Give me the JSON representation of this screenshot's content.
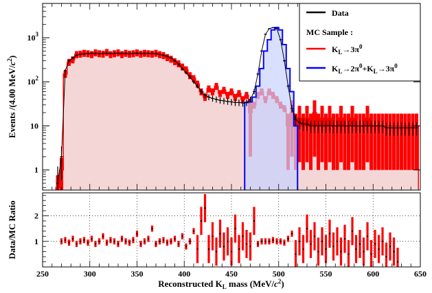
{
  "chart_data": [
    {
      "type": "line",
      "xlabel": "Reconstructed K_L mass (MeV/c²)",
      "ylabel": "Events /(4.00 MeV/c²)",
      "xlim": [
        250,
        650
      ],
      "ylim": [
        0.35,
        6000
      ],
      "yscale": "log",
      "y_ticks": [
        "1",
        "10",
        "10²",
        "10³"
      ],
      "x_ticks": [
        "250",
        "300",
        "350",
        "400",
        "450",
        "500",
        "550",
        "600",
        "650"
      ],
      "legend": {
        "placement": "top-right",
        "title": "MC Sample :",
        "entries": [
          "Data",
          "K_L→3π⁰",
          "K_L→2π⁰+K_L→3π⁰"
        ]
      },
      "colors": {
        "data": "#000000",
        "mc_3pi0": "#ff0000",
        "mc_combined": "#0000ff"
      },
      "series": [
        {
          "name": "Data",
          "x": [
            266,
            270,
            274,
            278,
            282,
            286,
            290,
            294,
            298,
            302,
            306,
            310,
            314,
            318,
            322,
            326,
            330,
            334,
            338,
            342,
            346,
            350,
            354,
            358,
            362,
            366,
            370,
            374,
            378,
            382,
            386,
            390,
            394,
            398,
            402,
            406,
            410,
            414,
            418,
            422,
            426,
            430,
            434,
            438,
            442,
            446,
            450,
            454,
            458,
            462,
            466,
            470,
            474,
            478,
            482,
            486,
            490,
            494,
            498,
            502,
            506,
            510,
            514,
            518,
            522,
            526,
            530,
            534,
            538,
            542,
            546,
            550,
            554,
            558,
            562,
            566,
            570,
            574,
            578,
            582,
            586,
            590,
            594,
            598,
            602,
            606,
            610,
            614,
            618,
            622,
            626,
            630,
            634,
            638,
            642,
            646
          ],
          "values": [
            0.5,
            2.0,
            180,
            300,
            350,
            400,
            420,
            430,
            440,
            445,
            440,
            435,
            440,
            445,
            440,
            440,
            445,
            440,
            440,
            435,
            440,
            445,
            440,
            440,
            445,
            440,
            435,
            420,
            400,
            380,
            350,
            300,
            250,
            200,
            160,
            130,
            100,
            80,
            60,
            50,
            45,
            42,
            40,
            38,
            37,
            36,
            35,
            34,
            34,
            33,
            34,
            40,
            60,
            150,
            500,
            1200,
            1600,
            1700,
            1600,
            900,
            300,
            80,
            25,
            14,
            12,
            11,
            11,
            10,
            10,
            10,
            10,
            10,
            10,
            10,
            10,
            10,
            10,
            10,
            10,
            10,
            10,
            10,
            10,
            10,
            10,
            10,
            10,
            9,
            9,
            9,
            9,
            9,
            9,
            9,
            9,
            9
          ]
        },
        {
          "name": "K_L→3π⁰",
          "x": [
            266,
            270,
            274,
            278,
            282,
            286,
            290,
            294,
            298,
            302,
            306,
            310,
            314,
            318,
            322,
            326,
            330,
            334,
            338,
            342,
            346,
            350,
            354,
            358,
            362,
            366,
            370,
            374,
            378,
            382,
            386,
            390,
            394,
            398,
            402,
            406,
            410,
            414,
            418,
            422,
            426,
            430,
            434,
            438,
            442,
            446,
            450,
            454,
            458,
            462,
            466,
            470,
            474,
            478,
            482,
            486,
            490,
            494,
            498,
            502,
            506,
            510,
            514,
            518,
            522,
            526,
            530,
            534,
            538,
            542,
            546,
            550,
            554,
            558,
            562,
            566,
            570,
            574,
            578,
            582,
            586,
            590,
            594,
            598,
            602,
            606,
            610,
            614,
            618,
            622,
            626,
            630,
            634,
            638,
            642,
            646
          ],
          "values": [
            0.4,
            1.0,
            150,
            280,
            320,
            420,
            430,
            450,
            440,
            420,
            460,
            440,
            430,
            470,
            420,
            440,
            460,
            420,
            450,
            430,
            440,
            460,
            430,
            450,
            440,
            430,
            450,
            420,
            400,
            360,
            330,
            290,
            260,
            220,
            190,
            140,
            120,
            90,
            60,
            45,
            70,
            60,
            80,
            55,
            65,
            50,
            60,
            45,
            55,
            40,
            50,
            20,
            30,
            50,
            60,
            40,
            60,
            50,
            40,
            30,
            25,
            10,
            20,
            10,
            15,
            10,
            15,
            10,
            20,
            10,
            15,
            10,
            15,
            10,
            10,
            15,
            10,
            10,
            15,
            10,
            10,
            10,
            15,
            10,
            10,
            10,
            10,
            10,
            10,
            10,
            10,
            10,
            10,
            10,
            10,
            10
          ]
        },
        {
          "name": "K_L→2π⁰+K_L→3π⁰",
          "x": [
            466,
            470,
            474,
            478,
            482,
            486,
            490,
            494,
            498,
            502,
            506,
            510,
            514,
            518
          ],
          "values": [
            34,
            35,
            45,
            80,
            200,
            500,
            900,
            1500,
            1700,
            1500,
            700,
            200,
            60,
            10
          ]
        }
      ]
    },
    {
      "type": "scatter",
      "xlabel": "Reconstructed K_L mass (MeV/c²)",
      "ylabel": "Data/MC Ratio",
      "xlim": [
        250,
        650
      ],
      "ylim": [
        0,
        2.9
      ],
      "y_ticks": [
        "1",
        "2"
      ],
      "grid": true,
      "series": [
        {
          "name": "Data/MC Ratio",
          "x": [
            270,
            274,
            278,
            282,
            286,
            290,
            294,
            298,
            302,
            306,
            310,
            314,
            318,
            322,
            326,
            330,
            334,
            338,
            342,
            346,
            350,
            354,
            358,
            362,
            366,
            370,
            374,
            378,
            382,
            386,
            390,
            394,
            398,
            402,
            406,
            410,
            414,
            418,
            422,
            426,
            430,
            434,
            438,
            442,
            446,
            450,
            454,
            458,
            462,
            466,
            470,
            474,
            478,
            482,
            486,
            490,
            494,
            498,
            502,
            506,
            510,
            514,
            518,
            522,
            526,
            530,
            534,
            538,
            542,
            546,
            550,
            554,
            558,
            562,
            566,
            570,
            574,
            578,
            582,
            586,
            590,
            594,
            598,
            602,
            606,
            610,
            614,
            618,
            622,
            626
          ],
          "values": [
            1.0,
            1.05,
            0.95,
            1.1,
            0.9,
            1.0,
            1.05,
            0.95,
            1.1,
            0.9,
            1.0,
            1.2,
            0.95,
            1.05,
            1.0,
            0.9,
            1.1,
            1.0,
            0.95,
            1.05,
            1.3,
            0.9,
            1.0,
            1.1,
            1.5,
            0.9,
            1.0,
            1.05,
            0.95,
            1.0,
            1.1,
            0.9,
            1.2,
            0.8,
            1.0,
            1.4,
            0.7,
            1.8,
            2.3,
            0.7,
            1.2,
            0.6,
            1.3,
            0.8,
            1.0,
            0.6,
            1.5,
            0.7,
            1.2,
            0.9,
            0.8,
            1.8,
            0.9,
            1.0,
            1.0,
            1.0,
            1.05,
            1.0,
            1.0,
            0.95,
            1.1,
            1.3,
            0.5,
            1.0,
            0.7,
            1.5,
            0.9,
            1.2,
            0.6,
            1.0,
            0.7,
            1.3,
            0.8,
            1.0,
            0.6,
            1.1,
            0.5,
            1.4,
            0.7,
            0.9,
            0.6,
            1.2,
            0.5,
            0.9,
            0.7,
            1.0,
            0.4,
            0.8,
            0.6,
            0.2
          ]
        }
      ]
    }
  ]
}
